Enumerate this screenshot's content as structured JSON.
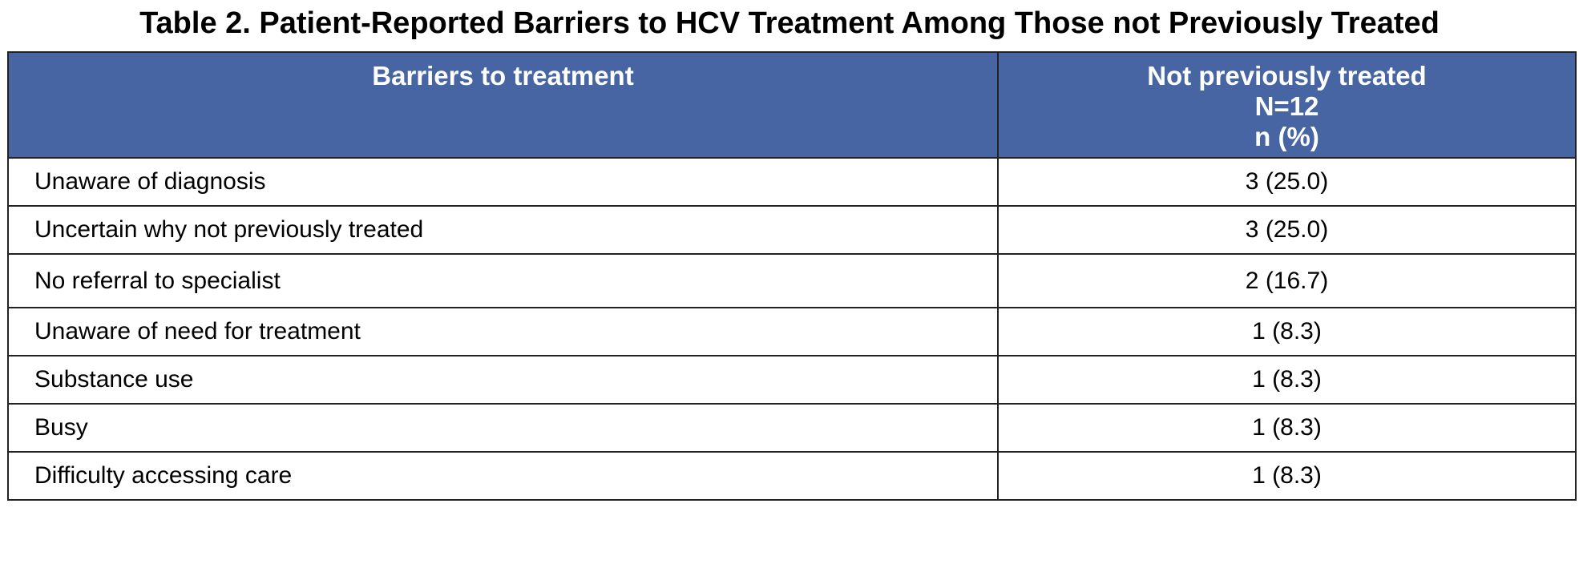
{
  "title": "Table 2. Patient-Reported Barriers to HCV Treatment Among Those not Previously Treated",
  "table": {
    "header": [
      [
        "Barriers to treatment"
      ],
      [
        "Not previously treated",
        "N=12",
        "n (%)"
      ]
    ],
    "rows": [
      [
        "Unaware of diagnosis",
        "3 (25.0)"
      ],
      [
        "Uncertain why not previously treated",
        "3 (25.0)"
      ],
      [
        "No referral to specialist",
        "2 (16.7)"
      ],
      [
        "Unaware of need for treatment",
        "1 (8.3)"
      ],
      [
        "Substance use",
        "1 (8.3)"
      ],
      [
        "Busy",
        "1 (8.3)"
      ],
      [
        "Difficulty accessing care",
        "1 (8.3)"
      ]
    ]
  }
}
